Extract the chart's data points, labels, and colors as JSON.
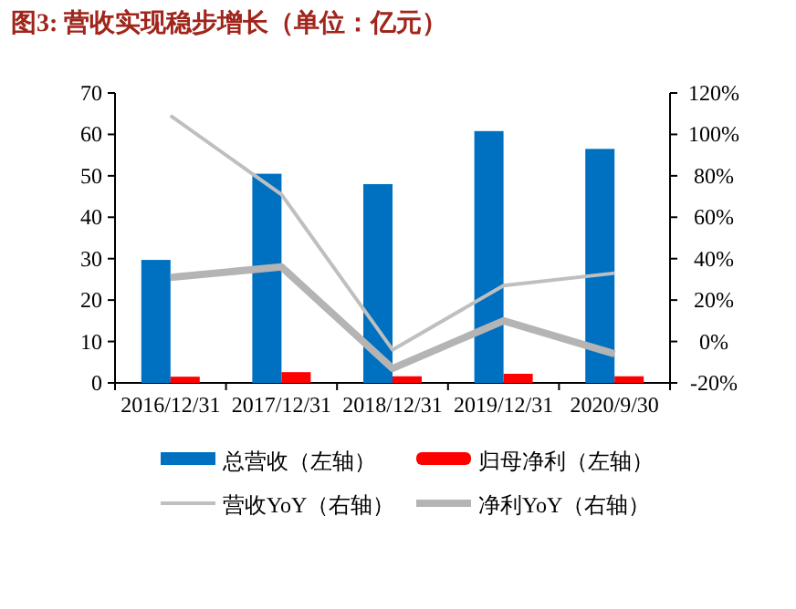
{
  "chart_data": {
    "type": "bar",
    "title": "图3:  营收实现稳步增长（单位：亿元）",
    "categories": [
      "2016/12/31",
      "2017/12/31",
      "2018/12/31",
      "2019/12/31",
      "2020/9/30"
    ],
    "series": [
      {
        "name": "总营收（左轴）",
        "color": "#0070c0",
        "values": [
          29.7,
          50.5,
          48,
          60.8,
          56.5
        ]
      },
      {
        "name": "归母净利（左轴）",
        "color": "#ff0000",
        "values": [
          1.5,
          2.6,
          1.6,
          2.2,
          1.6
        ]
      },
      {
        "name": "营收YoY（右轴）",
        "type": "line",
        "axis": "y2",
        "color": "#bfbfbf",
        "values": [
          109,
          71,
          -4,
          27,
          33
        ]
      },
      {
        "name": "净利YoY（右轴）",
        "type": "line",
        "axis": "y2",
        "color": "#b4b4b4",
        "values": [
          31,
          36,
          -13,
          10,
          -6
        ]
      }
    ],
    "ylim": [
      0,
      70
    ],
    "yticks": [
      0,
      10,
      20,
      30,
      40,
      50,
      60,
      70
    ],
    "y2lim": [
      -20,
      120
    ],
    "y2ticks": [
      {
        "value": -20,
        "label": "-20%"
      },
      {
        "value": 0,
        "label": "0%"
      },
      {
        "value": 20,
        "label": "20%"
      },
      {
        "value": 40,
        "label": "40%"
      },
      {
        "value": 60,
        "label": "60%"
      },
      {
        "value": 80,
        "label": "80%"
      },
      {
        "value": 100,
        "label": "100%"
      },
      {
        "value": 120,
        "label": "120%"
      }
    ],
    "legend": "bottom",
    "grid": false
  }
}
